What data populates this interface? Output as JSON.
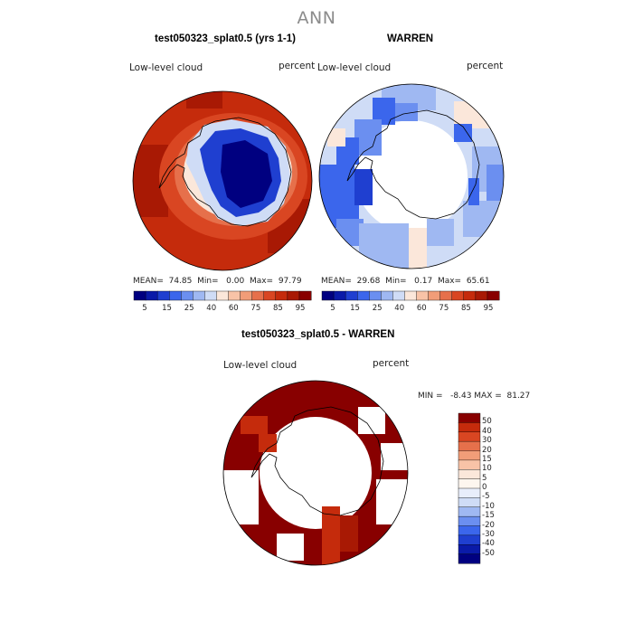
{
  "title": "ANN",
  "panels": [
    {
      "title": "test050323_splat0.5 (yrs 1-1)",
      "variable": "Low-level cloud",
      "units": "percent",
      "stats": "MEAN=  74.85  Min=   0.00  Max=  97.79"
    },
    {
      "title": "WARREN",
      "variable": "Low-level cloud",
      "units": "percent",
      "stats": "MEAN=  29.68  Min=   0.17  Max=  65.61"
    },
    {
      "title": "test050323_splat0.5 - WARREN",
      "variable": "Low-level cloud",
      "units": "percent",
      "stats": "MIN =   -8.43 MAX =  81.27"
    }
  ],
  "abs_colorbar": {
    "colors": [
      "#000080",
      "#0a1aa8",
      "#1f3fd0",
      "#3b66ec",
      "#6b8ff0",
      "#9fb8f2",
      "#cfdcf6",
      "#fbe7da",
      "#f8c3a7",
      "#f19d78",
      "#e6704b",
      "#d94622",
      "#c52b0c",
      "#a81904",
      "#880000"
    ],
    "labels": [
      "5",
      "15",
      "25",
      "40",
      "60",
      "75",
      "85",
      "95"
    ]
  },
  "diff_colorbar": {
    "colors": [
      "#880000",
      "#c52b0c",
      "#d94622",
      "#e6704b",
      "#f19d78",
      "#f8c3a7",
      "#fbe7da",
      "#fdf6ef",
      "#e8eefb",
      "#cfdcf6",
      "#9fb8f2",
      "#6b8ff0",
      "#3b66ec",
      "#1f3fd0",
      "#0a1aa8",
      "#000080"
    ],
    "labels": [
      "50",
      "40",
      "30",
      "20",
      "15",
      "10",
      "5",
      "0",
      "-5",
      "-10",
      "-15",
      "-20",
      "-30",
      "-40",
      "-50"
    ]
  },
  "chart_data": [
    {
      "type": "heatmap",
      "title": "test050323_splat0.5 (yrs 1-1)",
      "projection": "south polar stereographic",
      "variable": "Low-level cloud",
      "units": "percent",
      "mean": 74.85,
      "min": 0.0,
      "max": 97.79,
      "levels": [
        5,
        15,
        25,
        40,
        60,
        75,
        85,
        95
      ]
    },
    {
      "type": "heatmap",
      "title": "WARREN",
      "projection": "south polar stereographic",
      "variable": "Low-level cloud",
      "units": "percent",
      "mean": 29.68,
      "min": 0.17,
      "max": 65.61,
      "levels": [
        5,
        15,
        25,
        40,
        60,
        75,
        85,
        95
      ]
    },
    {
      "type": "heatmap",
      "title": "test050323_splat0.5 - WARREN",
      "projection": "south polar stereographic",
      "variable": "Low-level cloud",
      "units": "percent",
      "min": -8.43,
      "max": 81.27,
      "levels": [
        -50,
        -40,
        -30,
        -20,
        -15,
        -10,
        -5,
        0,
        5,
        10,
        15,
        20,
        30,
        40,
        50
      ]
    }
  ]
}
